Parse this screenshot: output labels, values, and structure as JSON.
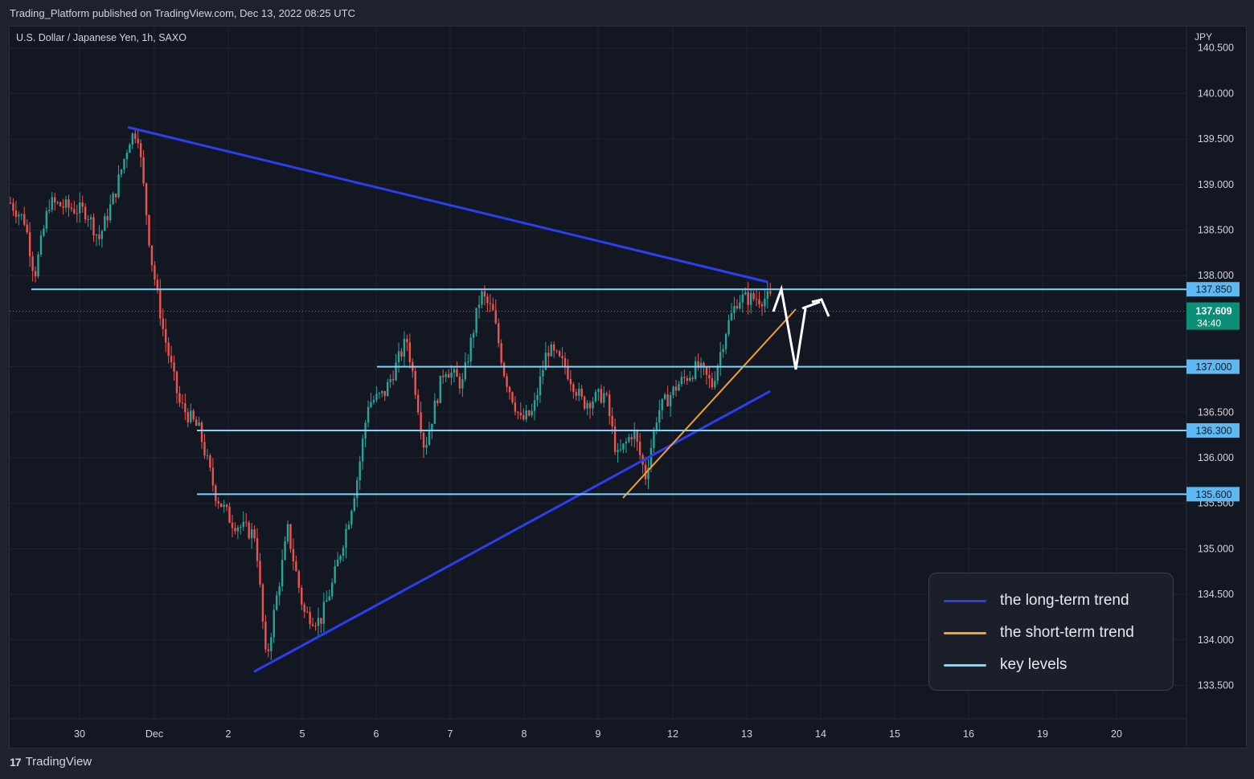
{
  "header": {
    "caption": "Trading_Platform published on TradingView.com, Dec 13, 2022 08:25 UTC"
  },
  "symbol": {
    "title": "U.S. Dollar / Japanese Yen, 1h, SAXO",
    "currency": "JPY"
  },
  "footer": {
    "logo_mark": "17",
    "logo_text": "TradingView"
  },
  "colors": {
    "background": "#131722",
    "grid": "#1f2330",
    "up": "#26a69a",
    "down": "#ef5350",
    "long_term": "#2b3ff0",
    "short_term": "#f5a12a",
    "key_level": "#7fd3ff",
    "projection": "#ffffff",
    "price_badge": "#0b8f76"
  },
  "chart_data": {
    "type": "candlestick",
    "title": "U.S. Dollar / Japanese Yen, 1h, SAXO",
    "ylabel": "JPY",
    "ylim": [
      133.2,
      140.5
    ],
    "y_ticks": [
      "133.500",
      "134.000",
      "134.500",
      "135.000",
      "135.500",
      "136.000",
      "136.500",
      "137.000",
      "137.500",
      "138.000",
      "138.500",
      "139.000",
      "139.500",
      "140.000",
      "140.500"
    ],
    "x_ticks": [
      "30",
      "Dec",
      "2",
      "5",
      "6",
      "7",
      "8",
      "9",
      "12",
      "13",
      "14",
      "15",
      "16",
      "19",
      "20"
    ],
    "last_price": {
      "value": "137.609",
      "countdown": "34:40"
    },
    "key_levels": [
      {
        "value": 137.85,
        "label": "137.850",
        "x_start": "Nov 29"
      },
      {
        "value": 137.0,
        "label": "137.000",
        "x_start": "Dec 6"
      },
      {
        "value": 136.3,
        "label": "136.300",
        "x_start": "Dec 1"
      },
      {
        "value": 135.6,
        "label": "135.600",
        "x_start": "Dec 1"
      }
    ],
    "trendlines": [
      {
        "name": "long-term resistance",
        "start": [
          "Nov 30",
          139.63
        ],
        "end": [
          "Dec 13",
          137.93
        ]
      },
      {
        "name": "long-term support",
        "start": [
          "Dec 2",
          133.65
        ],
        "end": [
          "Dec 13",
          136.73
        ]
      },
      {
        "name": "short-term support",
        "start": [
          "Dec 9",
          135.55
        ],
        "end": [
          "Dec 13",
          137.55
        ]
      }
    ],
    "projection_path": [
      [
        137.6
      ],
      [
        137.85
      ],
      [
        137.0
      ],
      [
        137.55
      ],
      [
        137.65
      ],
      [
        137.57
      ]
    ],
    "anchors": [
      [
        0,
        138.8
      ],
      [
        18,
        138.6
      ],
      [
        30,
        138.0
      ],
      [
        48,
        138.8
      ],
      [
        95,
        138.7
      ],
      [
        110,
        138.4
      ],
      [
        130,
        138.9
      ],
      [
        148,
        139.5
      ],
      [
        158,
        139.6
      ],
      [
        175,
        138.2
      ],
      [
        190,
        137.4
      ],
      [
        210,
        136.6
      ],
      [
        235,
        136.3
      ],
      [
        255,
        135.6
      ],
      [
        275,
        135.3
      ],
      [
        305,
        135.15
      ],
      [
        318,
        133.75
      ],
      [
        328,
        134.3
      ],
      [
        345,
        135.2
      ],
      [
        365,
        134.3
      ],
      [
        385,
        134.2
      ],
      [
        400,
        134.6
      ],
      [
        420,
        135.3
      ],
      [
        432,
        135.8
      ],
      [
        445,
        136.6
      ],
      [
        465,
        136.7
      ],
      [
        493,
        137.3
      ],
      [
        505,
        136.7
      ],
      [
        515,
        136.1
      ],
      [
        540,
        137.0
      ],
      [
        562,
        136.8
      ],
      [
        585,
        137.8
      ],
      [
        600,
        137.6
      ],
      [
        615,
        136.9
      ],
      [
        635,
        136.4
      ],
      [
        650,
        136.5
      ],
      [
        668,
        137.2
      ],
      [
        690,
        137.0
      ],
      [
        712,
        136.6
      ],
      [
        740,
        136.7
      ],
      [
        755,
        136.0
      ],
      [
        775,
        136.3
      ],
      [
        790,
        135.8
      ],
      [
        805,
        136.5
      ],
      [
        830,
        136.8
      ],
      [
        855,
        137.0
      ],
      [
        873,
        136.8
      ],
      [
        890,
        137.4
      ],
      [
        905,
        137.75
      ],
      [
        925,
        137.75
      ],
      [
        945,
        137.75
      ],
      [
        960,
        137.6
      ]
    ]
  },
  "legend": {
    "items": [
      {
        "label": "the long-term trend",
        "color": "#2b3ff0"
      },
      {
        "label": "the short-term trend",
        "color": "#f5a12a"
      },
      {
        "label": "key levels",
        "color": "#7fd3ff"
      }
    ]
  }
}
